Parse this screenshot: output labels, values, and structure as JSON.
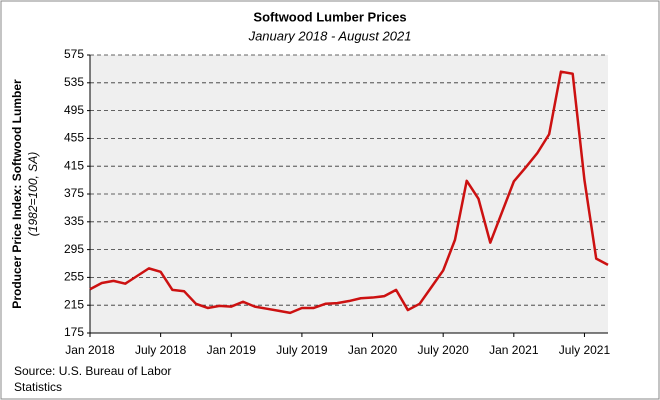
{
  "chart_data": {
    "type": "line",
    "title": "Softwood Lumber Prices",
    "subtitle": "January 2018 - August 2021",
    "y_label": "Producer Price Index: Softwood Lumber",
    "y_label_sub": "(1982=100, SA)",
    "source": [
      "Source: U.S. Bureau of Labor",
      "Statistics"
    ],
    "categories": [
      "Jan 2018",
      null,
      null,
      null,
      null,
      null,
      "July 2018",
      null,
      null,
      null,
      null,
      null,
      "Jan 2019",
      null,
      null,
      null,
      null,
      null,
      "July 2019",
      null,
      null,
      null,
      null,
      null,
      "Jan 2020",
      null,
      null,
      null,
      null,
      null,
      "July 2020",
      null,
      null,
      null,
      null,
      null,
      "Jan 2021",
      null,
      null,
      null,
      null,
      null,
      "July 2021",
      null,
      null
    ],
    "series": [
      {
        "name": "Softwood Lumber",
        "color": "#cc1111",
        "values": [
          238,
          247,
          250,
          246,
          257,
          268,
          263,
          237,
          235,
          217,
          211,
          214,
          213,
          220,
          213,
          210,
          207,
          204,
          211,
          211,
          217,
          218,
          221,
          225,
          226,
          228,
          237,
          208,
          217,
          241,
          265,
          309,
          394,
          368,
          305,
          349,
          393,
          413,
          434,
          461,
          551,
          548,
          395,
          282,
          273
        ]
      }
    ],
    "ylim": [
      175,
      575
    ],
    "yticks": [
      175,
      215,
      255,
      295,
      335,
      375,
      415,
      455,
      495,
      535,
      575
    ],
    "grid": true
  }
}
